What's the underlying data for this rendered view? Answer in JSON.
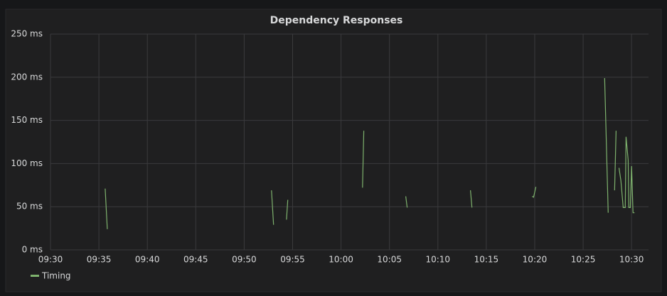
{
  "chart_data": {
    "type": "line",
    "title": "Dependency Responses",
    "x": [
      "09:35:39",
      "09:35:52",
      null,
      "09:52:49",
      "09:53:02",
      null,
      "09:54:22",
      "09:54:30",
      null,
      "10:02:13",
      "10:02:21",
      null,
      "10:06:41",
      "10:06:50",
      null,
      "10:13:22",
      "10:13:31",
      null,
      "10:19:44",
      "10:19:53",
      "10:20:07",
      null,
      "10:27:13",
      "10:27:35",
      null,
      "10:28:15",
      "10:28:24",
      null,
      "10:28:42",
      "10:28:54",
      "10:29:08",
      "10:29:21",
      "10:29:26",
      "10:29:39",
      "10:29:43",
      "10:29:52",
      "10:30:00",
      "10:30:09",
      "10:30:18"
    ],
    "series": [
      {
        "name": "Timing",
        "color": "#7eb26d",
        "values": [
          71,
          24,
          null,
          69,
          29,
          null,
          35,
          58,
          null,
          72,
          138,
          null,
          62,
          49,
          null,
          69,
          49,
          null,
          62,
          61,
          73,
          null,
          199,
          43,
          null,
          69,
          138,
          null,
          95,
          80,
          49,
          49,
          131,
          104,
          49,
          49,
          97,
          43,
          43
        ]
      }
    ],
    "xlim": [
      "09:30",
      "10:31:45"
    ],
    "xticks": [
      "09:30",
      "09:35",
      "09:40",
      "09:45",
      "09:50",
      "09:55",
      "10:00",
      "10:05",
      "10:10",
      "10:15",
      "10:20",
      "10:25",
      "10:30"
    ],
    "ylim": [
      0,
      250
    ],
    "yticks": [
      {
        "value": 0,
        "label": "0 ms"
      },
      {
        "value": 50,
        "label": "50 ms"
      },
      {
        "value": 100,
        "label": "100 ms"
      },
      {
        "value": 150,
        "label": "150 ms"
      },
      {
        "value": 200,
        "label": "200 ms"
      },
      {
        "value": 250,
        "label": "250 ms"
      }
    ],
    "grid": true,
    "legend": "bottom-left"
  }
}
